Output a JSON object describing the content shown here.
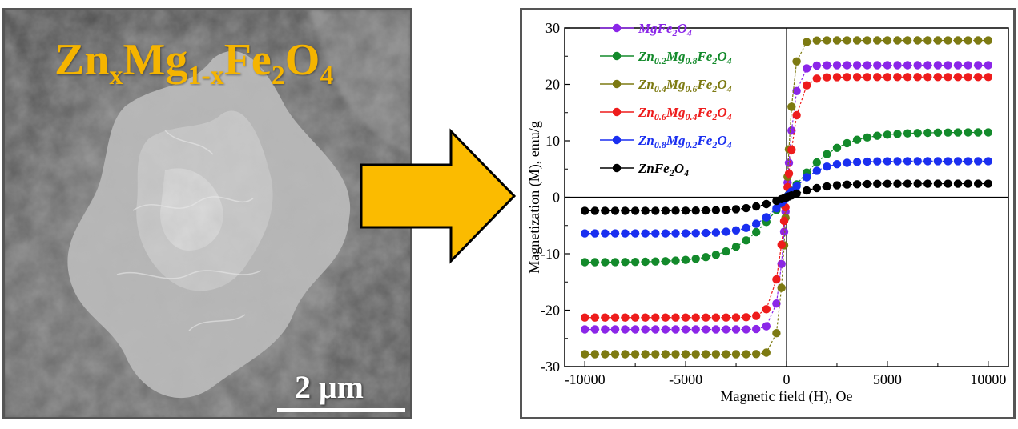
{
  "sem": {
    "formula": {
      "zn": "Zn",
      "x": "x",
      "mg": "Mg",
      "onex": "1-x",
      "fe": "Fe",
      "two": "2",
      "o": "O",
      "four": "4"
    },
    "scale_bar_label": "2 μm",
    "formula_color": "#f5b400"
  },
  "arrow": {
    "color": "#fbbb00",
    "icon": "right-arrow-icon"
  },
  "chart_data": {
    "type": "scatter",
    "title": "",
    "xlabel": "Magnetic field (H), Oe",
    "ylabel": "Magnetization (M), emu/g",
    "xlim": [
      -11000,
      11000
    ],
    "ylim": [
      -30,
      30
    ],
    "xticks": [
      -10000,
      -5000,
      0,
      5000,
      10000
    ],
    "yticks": [
      -30,
      -20,
      -10,
      0,
      10,
      20,
      30
    ],
    "grid": false,
    "legend_position": "top-left",
    "series": [
      {
        "name": "MgFe2O4",
        "label_parts": [
          [
            "Mg",
            ""
          ],
          [
            "Fe",
            ""
          ],
          [
            "2",
            "sub"
          ],
          [
            "O",
            ""
          ],
          [
            "4",
            "sub"
          ]
        ],
        "color": "#8b26e8",
        "ms": 23.4,
        "h0": 450
      },
      {
        "name": "Zn0.2Mg0.8Fe2O4",
        "label_parts": [
          [
            "Zn",
            ""
          ],
          [
            "0.2",
            "sub"
          ],
          [
            "Mg",
            ""
          ],
          [
            "0.8",
            "sub"
          ],
          [
            "Fe",
            ""
          ],
          [
            "2",
            "sub"
          ],
          [
            "O",
            ""
          ],
          [
            "4",
            "sub"
          ]
        ],
        "color": "#138a2b",
        "ms": 11.5,
        "h0": 2500
      },
      {
        "name": "Zn0.4Mg0.6Fe2O4",
        "label_parts": [
          [
            "Zn",
            ""
          ],
          [
            "0.4",
            "sub"
          ],
          [
            "Mg",
            ""
          ],
          [
            "0.6",
            "sub"
          ],
          [
            "Fe",
            ""
          ],
          [
            "2",
            "sub"
          ],
          [
            "O",
            ""
          ],
          [
            "4",
            "sub"
          ]
        ],
        "color": "#7d7a12",
        "ms": 27.8,
        "h0": 380
      },
      {
        "name": "Zn0.6Mg0.4Fe2O4",
        "label_parts": [
          [
            "Zn",
            ""
          ],
          [
            "0.6",
            "sub"
          ],
          [
            "Mg",
            ""
          ],
          [
            "0.4",
            "sub"
          ],
          [
            "Fe",
            ""
          ],
          [
            "2",
            "sub"
          ],
          [
            "O",
            ""
          ],
          [
            "4",
            "sub"
          ]
        ],
        "color": "#ee1c1c",
        "ms": 21.3,
        "h0": 600
      },
      {
        "name": "Zn0.8Mg0.2Fe2O4",
        "label_parts": [
          [
            "Zn",
            ""
          ],
          [
            "0.8",
            "sub"
          ],
          [
            "Mg",
            ""
          ],
          [
            "0.2",
            "sub"
          ],
          [
            "Fe",
            ""
          ],
          [
            "2",
            "sub"
          ],
          [
            "O",
            ""
          ],
          [
            "4",
            "sub"
          ]
        ],
        "color": "#1a2ff0",
        "ms": 6.4,
        "h0": 1600
      },
      {
        "name": "ZnFe2O4",
        "label_parts": [
          [
            "Zn",
            ""
          ],
          [
            "Fe",
            ""
          ],
          [
            "2",
            "sub"
          ],
          [
            "O",
            ""
          ],
          [
            "4",
            "sub"
          ]
        ],
        "color": "#000000",
        "ms": 2.4,
        "h0": 1800
      }
    ]
  }
}
